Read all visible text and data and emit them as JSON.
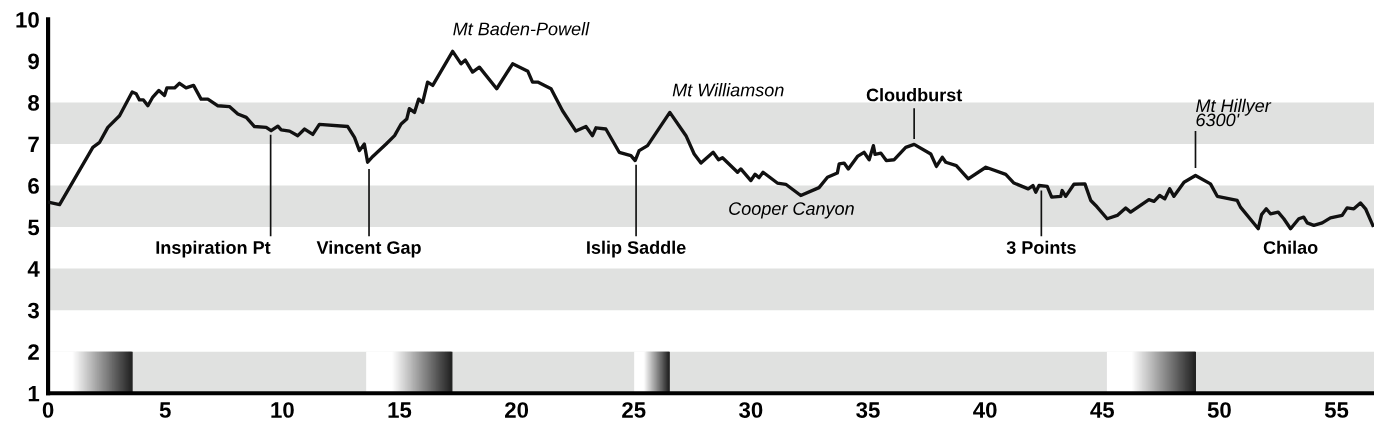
{
  "chart_data": {
    "type": "line",
    "color": "#111111",
    "x": [
      0,
      0.49,
      1.91,
      2.2,
      2.55,
      3.05,
      3.59,
      3.76,
      3.9,
      4.07,
      4.26,
      4.47,
      4.73,
      4.97,
      5.07,
      5.4,
      5.61,
      5.89,
      6.21,
      6.53,
      6.82,
      7.25,
      7.74,
      8.1,
      8.46,
      8.81,
      9.31,
      9.52,
      9.81,
      9.95,
      10.31,
      10.66,
      10.95,
      11.3,
      11.58,
      12.79,
      13.08,
      13.29,
      13.5,
      13.64,
      13.86,
      14.43,
      14.79,
      15.07,
      15.31,
      15.42,
      15.64,
      15.82,
      15.99,
      16.2,
      16.42,
      17.27,
      17.63,
      17.81,
      18.12,
      18.41,
      19.15,
      19.83,
      20.48,
      20.68,
      20.9,
      21.47,
      21.96,
      22.53,
      22.96,
      23.24,
      23.39,
      23.81,
      24.38,
      24.88,
      25.06,
      25.23,
      25.59,
      26.54,
      27.23,
      27.58,
      27.87,
      28.39,
      28.62,
      28.79,
      29.43,
      29.57,
      30.0,
      30.18,
      30.35,
      30.52,
      31.13,
      31.49,
      32.13,
      32.91,
      33.27,
      33.69,
      33.77,
      33.98,
      34.16,
      34.55,
      34.83,
      35.05,
      35.23,
      35.3,
      35.55,
      35.78,
      36.11,
      36.61,
      36.97,
      37.68,
      37.92,
      38.17,
      38.32,
      38.77,
      39.28,
      40.03,
      40.88,
      41.23,
      41.84,
      42.04,
      42.16,
      42.3,
      42.65,
      42.84,
      43.23,
      43.29,
      43.44,
      43.79,
      44.26,
      44.51,
      44.72,
      45.21,
      45.64,
      46.0,
      46.21,
      46.99,
      47.21,
      47.45,
      47.67,
      47.88,
      48.06,
      48.49,
      48.98,
      49.62,
      49.91,
      50.76,
      50.9,
      51.66,
      51.8,
      52.0,
      52.18,
      52.51,
      52.75,
      53.04,
      53.39,
      53.6,
      53.75,
      54.03,
      54.39,
      54.74,
      55.24,
      55.45,
      55.74,
      56.02,
      56.24,
      56.55
    ],
    "values": [
      5.6,
      5.54,
      6.92,
      7.04,
      7.4,
      7.68,
      8.25,
      8.21,
      8.06,
      8.06,
      7.92,
      8.13,
      8.29,
      8.17,
      8.35,
      8.35,
      8.46,
      8.35,
      8.41,
      8.08,
      8.08,
      7.92,
      7.9,
      7.72,
      7.64,
      7.42,
      7.4,
      7.32,
      7.43,
      7.34,
      7.31,
      7.2,
      7.36,
      7.23,
      7.47,
      7.42,
      7.16,
      6.84,
      7.0,
      6.56,
      6.7,
      7.0,
      7.2,
      7.48,
      7.6,
      7.85,
      7.76,
      8.08,
      8.0,
      8.49,
      8.41,
      9.23,
      8.93,
      9.02,
      8.73,
      8.85,
      8.33,
      8.93,
      8.75,
      8.49,
      8.49,
      8.33,
      7.8,
      7.31,
      7.42,
      7.2,
      7.39,
      7.36,
      6.8,
      6.72,
      6.6,
      6.84,
      6.96,
      7.76,
      7.2,
      6.76,
      6.54,
      6.8,
      6.62,
      6.67,
      6.32,
      6.4,
      6.12,
      6.27,
      6.19,
      6.32,
      6.06,
      6.03,
      5.76,
      5.95,
      6.2,
      6.3,
      6.52,
      6.54,
      6.4,
      6.7,
      6.8,
      6.62,
      6.96,
      6.75,
      6.78,
      6.6,
      6.62,
      6.92,
      6.99,
      6.76,
      6.46,
      6.68,
      6.56,
      6.48,
      6.16,
      6.44,
      6.27,
      6.06,
      5.92,
      6.0,
      5.84,
      6.0,
      5.98,
      5.72,
      5.74,
      5.88,
      5.74,
      6.03,
      6.04,
      5.64,
      5.52,
      5.2,
      5.28,
      5.46,
      5.36,
      5.66,
      5.62,
      5.76,
      5.68,
      5.92,
      5.74,
      6.08,
      6.24,
      6.04,
      5.74,
      5.64,
      5.48,
      4.96,
      5.3,
      5.44,
      5.32,
      5.36,
      5.2,
      4.96,
      5.2,
      5.24,
      5.1,
      5.04,
      5.1,
      5.22,
      5.28,
      5.46,
      5.44,
      5.58,
      5.44,
      5.04
    ],
    "xlim": [
      0,
      56.6
    ],
    "ylim": [
      1,
      10
    ],
    "xticks": [
      0,
      5,
      10,
      15,
      20,
      25,
      30,
      35,
      40,
      45,
      50,
      55
    ],
    "yticks": [
      1,
      2,
      3,
      4,
      5,
      6,
      7,
      8,
      9,
      10
    ],
    "bands": [
      {
        "axis": "y",
        "from": 7,
        "to": 8,
        "color": "#e0e1e0"
      },
      {
        "axis": "y",
        "from": 5,
        "to": 6,
        "color": "#e0e1e0"
      },
      {
        "axis": "y",
        "from": 3,
        "to": 4,
        "color": "#e0e1e0"
      },
      {
        "axis": "y",
        "from": 1,
        "to": 2,
        "color": "#e0e1e0"
      }
    ],
    "annotations": [
      {
        "text": "Inspiration Pt",
        "x": 9.5,
        "y": 7.32
      },
      {
        "text": "Vincent Gap",
        "x": 13.7,
        "y": 6.5
      },
      {
        "text": "Mt Baden-Powell",
        "x": 17.27,
        "y": 9.23
      },
      {
        "text": "Islip Saddle",
        "x": 25.1,
        "y": 6.6
      },
      {
        "text": "Mt Williamson",
        "x": 26.54,
        "y": 7.76
      },
      {
        "text": "Cooper Canyon",
        "x": 32.13,
        "y": 5.76
      },
      {
        "text": "Cloudburst",
        "x": 36.97,
        "y": 6.99
      },
      {
        "text": "3 Points",
        "x": 42.4,
        "y": 5.98
      },
      {
        "text": "Mt Hillyer\n6300'",
        "x": 48.98,
        "y": 6.24
      },
      {
        "text": "Chilao",
        "x": 53.04,
        "y": 4.96
      }
    ]
  }
}
